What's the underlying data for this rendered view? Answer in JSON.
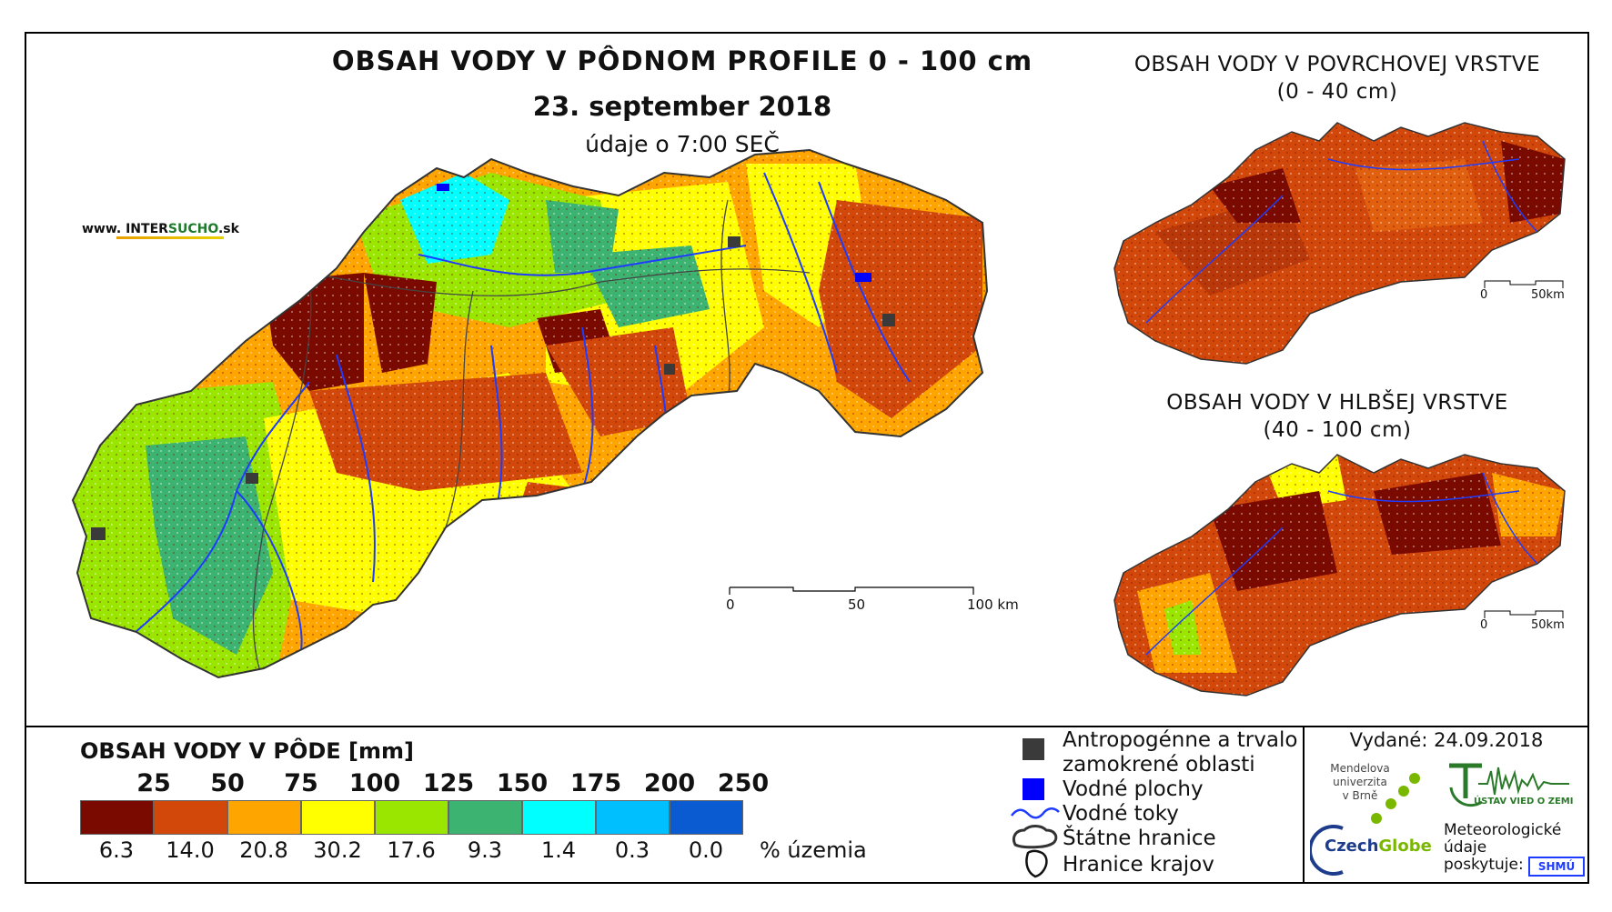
{
  "title": {
    "main": "OBSAH VODY V PÔDNOM PROFILE 0 - 100 cm",
    "date": "23. september 2018",
    "time": "údaje o 7:00 SEČ"
  },
  "brand": {
    "prefix": "www. INTER",
    "highlight": "SUCHO",
    "suffix": ".sk"
  },
  "inset_top": {
    "title_line1": "OBSAH VODY V POVRCHOVEJ VRSTVE",
    "title_line2": "(0 - 40 cm)",
    "scale_start": "0",
    "scale_end": "50km"
  },
  "inset_bottom": {
    "title_line1": "OBSAH VODY V HLBŠEJ VRSTVE",
    "title_line2": "(40 - 100 cm)",
    "scale_start": "0",
    "scale_end": "50km"
  },
  "main_scale": {
    "labels": [
      "0",
      "50",
      "100 km"
    ]
  },
  "legend": {
    "title": "OBSAH VODY V PÔDE [mm]",
    "thresholds": [
      "25",
      "50",
      "75",
      "100",
      "125",
      "150",
      "175",
      "200",
      "250"
    ],
    "classes": [
      {
        "color": "#7a0a00",
        "pct": "6.3"
      },
      {
        "color": "#d2480a",
        "pct": "14.0"
      },
      {
        "color": "#ffa500",
        "pct": "20.8"
      },
      {
        "color": "#ffff00",
        "pct": "30.2"
      },
      {
        "color": "#9ae600",
        "pct": "17.6"
      },
      {
        "color": "#3cb371",
        "pct": "9.3"
      },
      {
        "color": "#00ffff",
        "pct": "1.4"
      },
      {
        "color": "#00bfff",
        "pct": "0.3"
      },
      {
        "color": "#0a5ad2",
        "pct": "0.0"
      }
    ],
    "pct_unit": "% územia"
  },
  "symbols": {
    "urban_line1": "Antropogénne a trvalo",
    "urban_line2": "zamokrené oblasti",
    "water": "Vodné plochy",
    "rivers": "Vodné toky",
    "border": "Štátne hranice",
    "regions": "Hranice krajov"
  },
  "issued": "Vydané: 24.09.2018",
  "logos": {
    "mendel_line1": "Mendelova",
    "mendel_line2": "univerzita",
    "mendel_line3": "v Brně",
    "czechglobe_a": "Czech",
    "czechglobe_b": "Globe",
    "uvz": "ÚSTAV VIED O ZEMI",
    "meteo_line1": "Meteorologické",
    "meteo_line2": "údaje",
    "meteo_line3": "poskytuje:",
    "shmu": "SHMÚ"
  },
  "colors": {
    "frame": "#000000",
    "river": "#1e3cff",
    "border": "#444444",
    "urban": "#3a3a3a",
    "water": "#0000ff"
  }
}
